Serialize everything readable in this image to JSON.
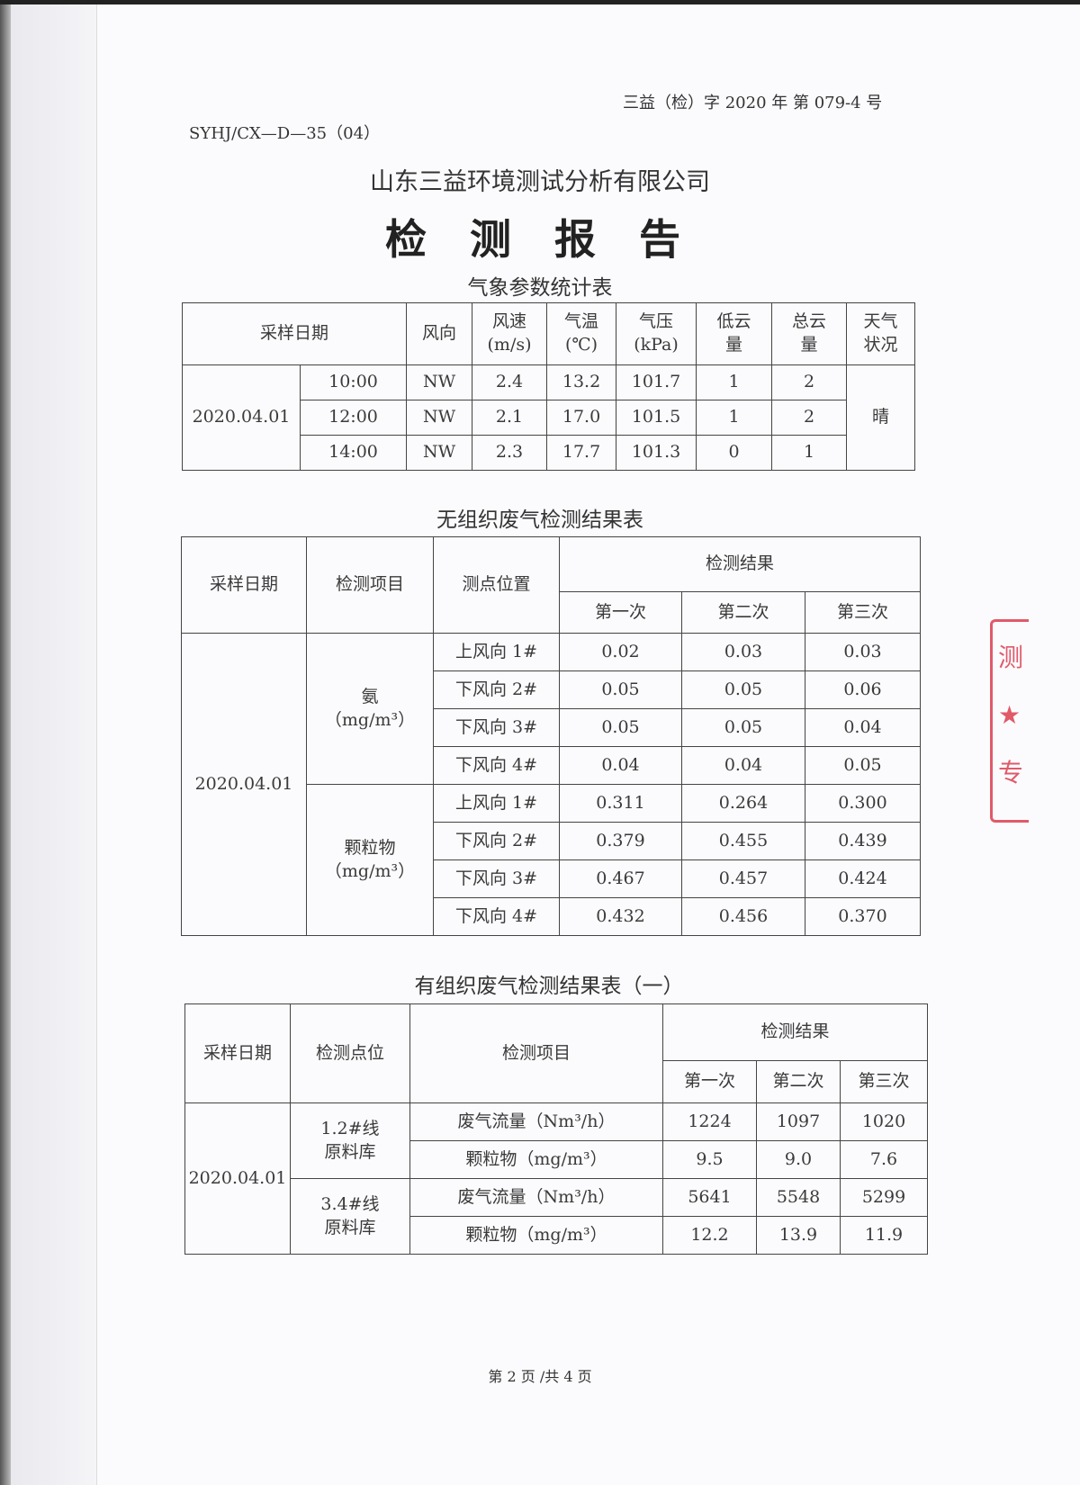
{
  "header": {
    "report_no": "三益（检）字 2020 年 第 079-4 号",
    "form_code": "SYHJ/CX—D—35（04）",
    "company": "山东三益环境测试分析有限公司",
    "doc_title": "检 测 报 告"
  },
  "stamp": {
    "text": "测 ★ 专"
  },
  "weather_table": {
    "title": "气象参数统计表",
    "headers": [
      "采样日期",
      "风向",
      "风速\n(m/s)",
      "气温\n(℃)",
      "气压\n(kPa)",
      "低云\n量",
      "总云\n量",
      "天气\n状况"
    ],
    "date": "2020.04.01",
    "weather": "晴",
    "rows": [
      {
        "time": "10:00",
        "dir": "NW",
        "speed": "2.4",
        "temp": "13.2",
        "pressure": "101.7",
        "low": "1",
        "total": "2"
      },
      {
        "time": "12:00",
        "dir": "NW",
        "speed": "2.1",
        "temp": "17.0",
        "pressure": "101.5",
        "low": "1",
        "total": "2"
      },
      {
        "time": "14:00",
        "dir": "NW",
        "speed": "2.3",
        "temp": "17.7",
        "pressure": "101.3",
        "low": "0",
        "total": "1"
      }
    ]
  },
  "fugitive_table": {
    "title": "无组织废气检测结果表",
    "headers": {
      "date": "采样日期",
      "item": "检测项目",
      "point": "测点位置",
      "results": "检测结果",
      "r1": "第一次",
      "r2": "第二次",
      "r3": "第三次"
    },
    "date": "2020.04.01",
    "groups": [
      {
        "item": "氨\n（mg/m³）",
        "rows": [
          [
            "上风向 1#",
            "0.02",
            "0.03",
            "0.03"
          ],
          [
            "下风向 2#",
            "0.05",
            "0.05",
            "0.06"
          ],
          [
            "下风向 3#",
            "0.05",
            "0.05",
            "0.04"
          ],
          [
            "下风向 4#",
            "0.04",
            "0.04",
            "0.05"
          ]
        ]
      },
      {
        "item": "颗粒物\n（mg/m³）",
        "rows": [
          [
            "上风向 1#",
            "0.311",
            "0.264",
            "0.300"
          ],
          [
            "下风向 2#",
            "0.379",
            "0.455",
            "0.439"
          ],
          [
            "下风向 3#",
            "0.467",
            "0.457",
            "0.424"
          ],
          [
            "下风向 4#",
            "0.432",
            "0.456",
            "0.370"
          ]
        ]
      }
    ]
  },
  "organized_table": {
    "title": "有组织废气检测结果表（一）",
    "headers": {
      "date": "采样日期",
      "point": "检测点位",
      "item": "检测项目",
      "results": "检测结果",
      "r1": "第一次",
      "r2": "第二次",
      "r3": "第三次"
    },
    "date": "2020.04.01",
    "groups": [
      {
        "point": "1.2#线\n原料库",
        "rows": [
          [
            "废气流量（Nm³/h）",
            "1224",
            "1097",
            "1020"
          ],
          [
            "颗粒物（mg/m³）",
            "9.5",
            "9.0",
            "7.6"
          ]
        ]
      },
      {
        "point": "3.4#线\n原料库",
        "rows": [
          [
            "废气流量（Nm³/h）",
            "5641",
            "5548",
            "5299"
          ],
          [
            "颗粒物（mg/m³）",
            "12.2",
            "13.9",
            "11.9"
          ]
        ]
      }
    ]
  },
  "footer": {
    "page": "第 2 页 /共 4 页"
  }
}
